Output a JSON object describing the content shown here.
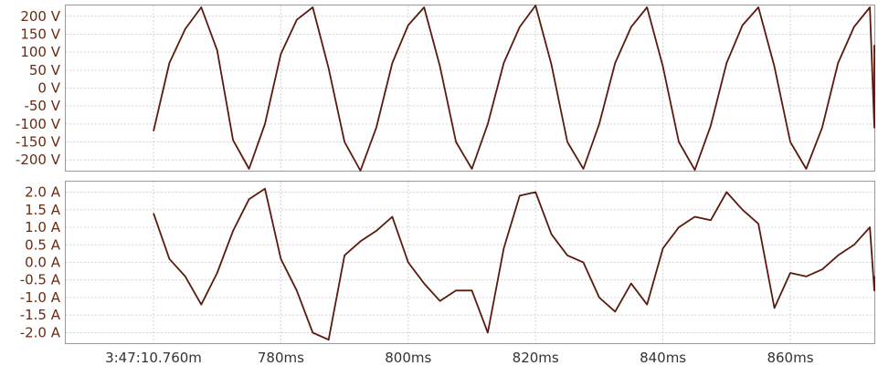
{
  "chart_data": [
    {
      "type": "line",
      "channel": "voltage",
      "ylim": [
        -230,
        230
      ],
      "ticks": [
        200,
        150,
        100,
        50,
        0,
        -50,
        -100,
        -150,
        -200
      ],
      "tick_labels": [
        "200 V",
        "150 V",
        "100 V",
        "50 V",
        "0 V",
        "-50 V",
        "-100 V",
        "-150 V",
        "-200 V"
      ],
      "series": [
        {
          "x": [
            760.0,
            762.5,
            765.0,
            767.5,
            770.0,
            772.5,
            775.0,
            777.5,
            780.0,
            782.5,
            785.0,
            787.5,
            790.0,
            792.5,
            795.0,
            797.5,
            800.0,
            802.5,
            805.0,
            807.5,
            810.0,
            812.5,
            815.0,
            817.5,
            820.0,
            822.5,
            825.0,
            827.5,
            830.0,
            832.5,
            835.0,
            837.5,
            840.0,
            842.5,
            845.0,
            847.5,
            850.0,
            852.5,
            855.0,
            857.5,
            860.0,
            862.5,
            865.0,
            867.5,
            870.0,
            872.5,
            875.0,
            877.2
          ],
          "y": [
            -120,
            70,
            165,
            225,
            105,
            -145,
            -225,
            -100,
            95,
            190,
            225,
            55,
            -150,
            -230,
            -110,
            70,
            175,
            225,
            60,
            -150,
            -225,
            -100,
            70,
            170,
            230,
            65,
            -150,
            -225,
            -100,
            70,
            170,
            225,
            60,
            -150,
            -228,
            -105,
            70,
            175,
            225,
            60,
            -150,
            -225,
            -110,
            70,
            170,
            225,
            -110,
            120
          ]
        }
      ]
    },
    {
      "type": "line",
      "channel": "current",
      "ylim": [
        -2.3,
        2.3
      ],
      "ticks": [
        2.0,
        1.5,
        1.0,
        0.5,
        0.0,
        -0.5,
        -1.0,
        -1.5,
        -2.0
      ],
      "tick_labels": [
        "2.0 A",
        "1.5 A",
        "1.0 A",
        "0.5 A",
        "0.0 A",
        "-0.5 A",
        "-1.0 A",
        "-1.5 A",
        "-2.0 A"
      ],
      "series": [
        {
          "x": [
            760.0,
            762.5,
            765.0,
            767.5,
            770.0,
            772.5,
            775.0,
            777.5,
            780.0,
            782.5,
            785.0,
            787.5,
            790.0,
            792.5,
            795.0,
            797.5,
            800.0,
            802.5,
            805.0,
            807.5,
            810.0,
            812.5,
            815.0,
            817.5,
            820.0,
            822.5,
            825.0,
            827.5,
            830.0,
            832.5,
            835.0,
            837.5,
            840.0,
            842.5,
            845.0,
            847.5,
            850.0,
            852.5,
            855.0,
            857.5,
            860.0,
            862.5,
            865.0,
            867.5,
            870.0,
            872.5,
            875.0,
            877.2
          ],
          "y": [
            1.4,
            0.1,
            -0.4,
            -1.2,
            -0.3,
            0.9,
            1.8,
            2.1,
            0.1,
            -0.8,
            -2.0,
            -2.2,
            0.2,
            0.6,
            0.9,
            1.3,
            0.0,
            -0.6,
            -1.1,
            -0.8,
            -0.8,
            -2.0,
            0.4,
            1.9,
            2.0,
            0.8,
            0.2,
            0.0,
            -1.0,
            -1.4,
            -0.6,
            -1.2,
            0.4,
            1.0,
            1.3,
            1.2,
            2.0,
            1.5,
            1.1,
            -1.3,
            -0.3,
            -0.4,
            -0.2,
            0.2,
            0.5,
            1.0,
            -0.8,
            -0.4
          ]
        }
      ]
    }
  ],
  "time_axis": {
    "ticks": [
      760,
      780,
      800,
      820,
      840,
      860
    ],
    "labels": [
      "3:47:10.760m",
      "780ms",
      "800ms",
      "820ms",
      "840ms",
      "860ms"
    ]
  },
  "colors": {
    "trace": "#5a1a0e",
    "label": "#6b2a10"
  }
}
